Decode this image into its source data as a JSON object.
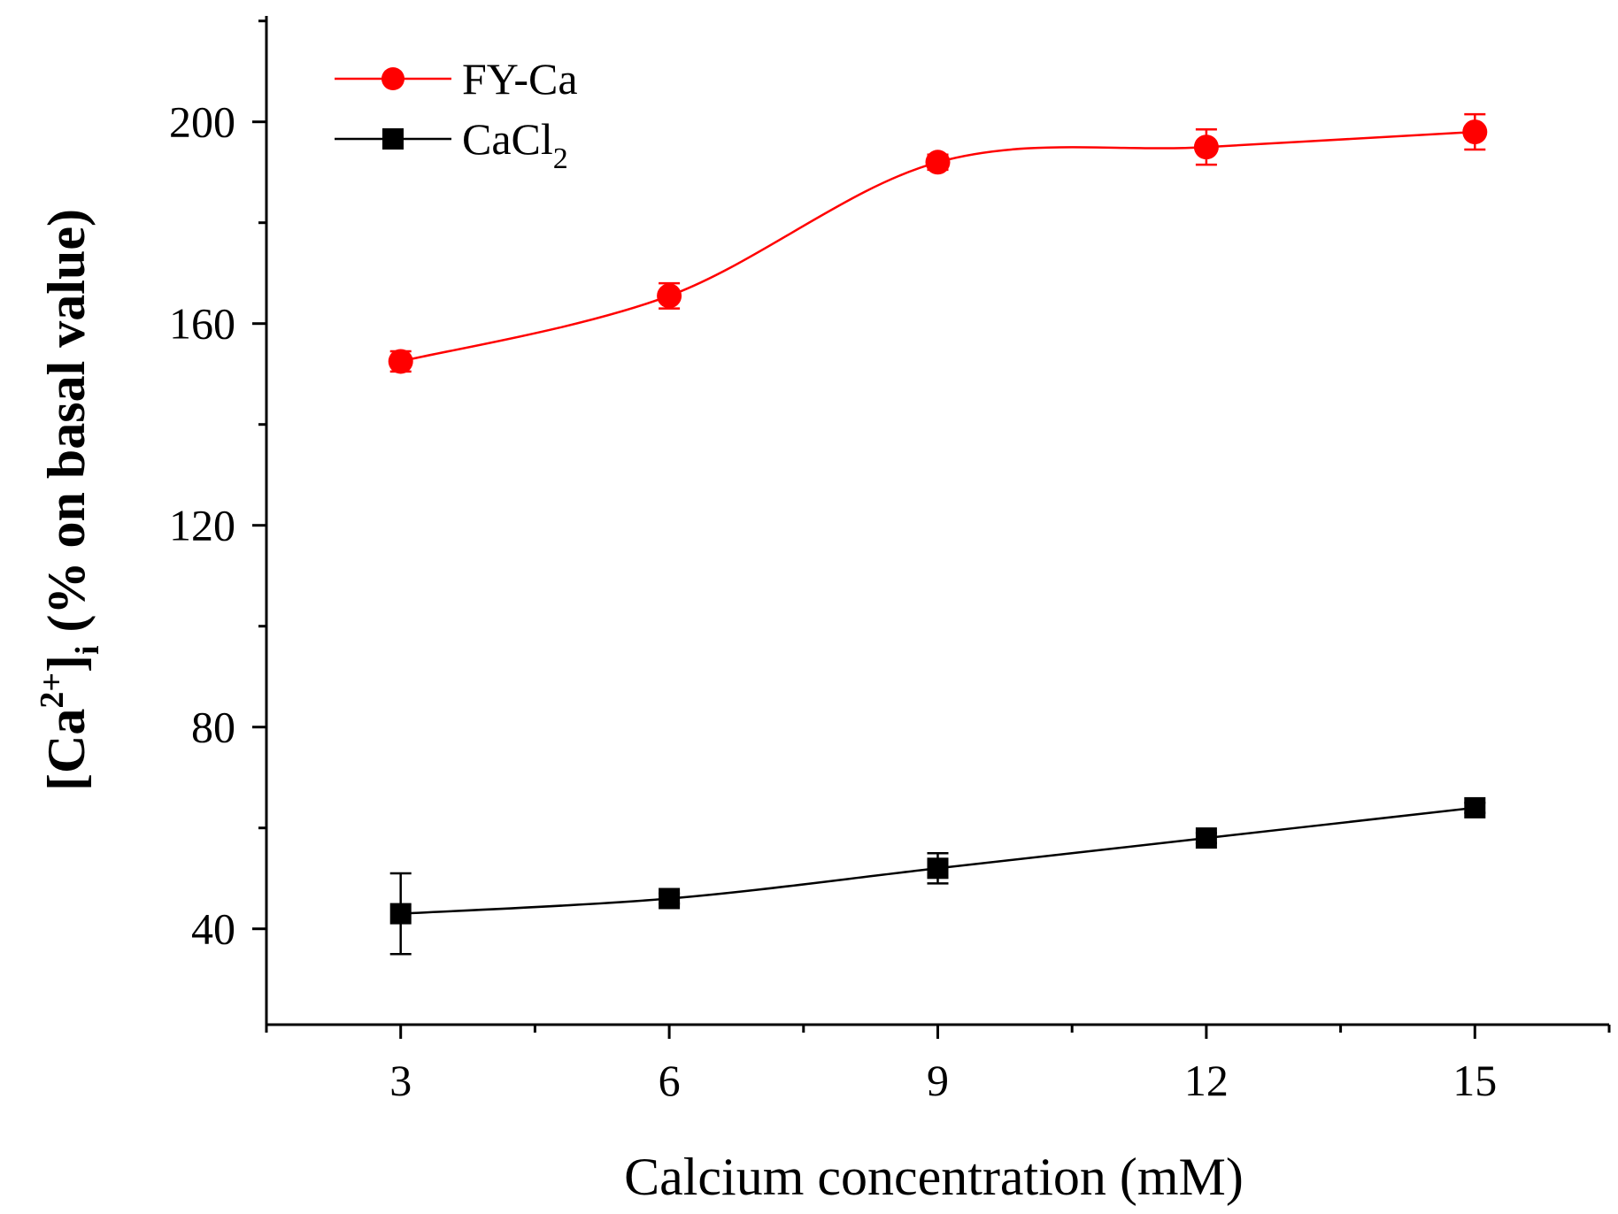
{
  "chart_data": {
    "type": "line",
    "title": "",
    "xlabel": "Calcium concentration (mM)",
    "ylabel": {
      "open": "[Ca",
      "sup": "2+",
      "close": "]",
      "sub": "i",
      "rest": " (% on basal value)"
    },
    "x": [
      3,
      6,
      9,
      12,
      15
    ],
    "x_ticks": [
      "3",
      "6",
      "9",
      "12",
      "15"
    ],
    "y_ticks": [
      "40",
      "80",
      "120",
      "160",
      "200"
    ],
    "xlim": [
      1.5,
      16.5
    ],
    "ylim": [
      21,
      221
    ],
    "legend_position": "top-left",
    "series": [
      {
        "name": "FY-Ca",
        "color": "#ff0000",
        "marker": "circle",
        "values": [
          152.5,
          165.5,
          192,
          195,
          198
        ],
        "errors": [
          2,
          2.5,
          1.5,
          3.5,
          3.5
        ]
      },
      {
        "name": "CaCl",
        "name_sub": "2",
        "color": "#000000",
        "marker": "square",
        "values": [
          43,
          46,
          52,
          58,
          64
        ],
        "errors": [
          8,
          1,
          3,
          1,
          1
        ]
      }
    ]
  }
}
